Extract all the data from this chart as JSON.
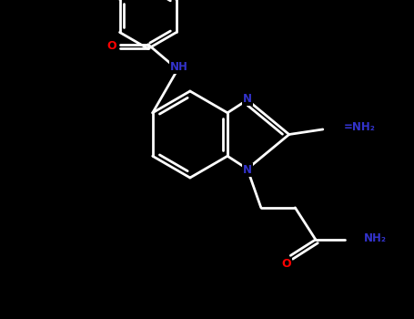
{
  "background": "#000000",
  "bond_color": "#FFFFFF",
  "nitrogen_color": "#3333CC",
  "oxygen_color": "#FF0000",
  "line_width": 2.0,
  "figsize": [
    4.55,
    3.5
  ],
  "dpi": 100,
  "xlim": [
    0,
    9.1
  ],
  "ylim": [
    0,
    7.0
  ]
}
